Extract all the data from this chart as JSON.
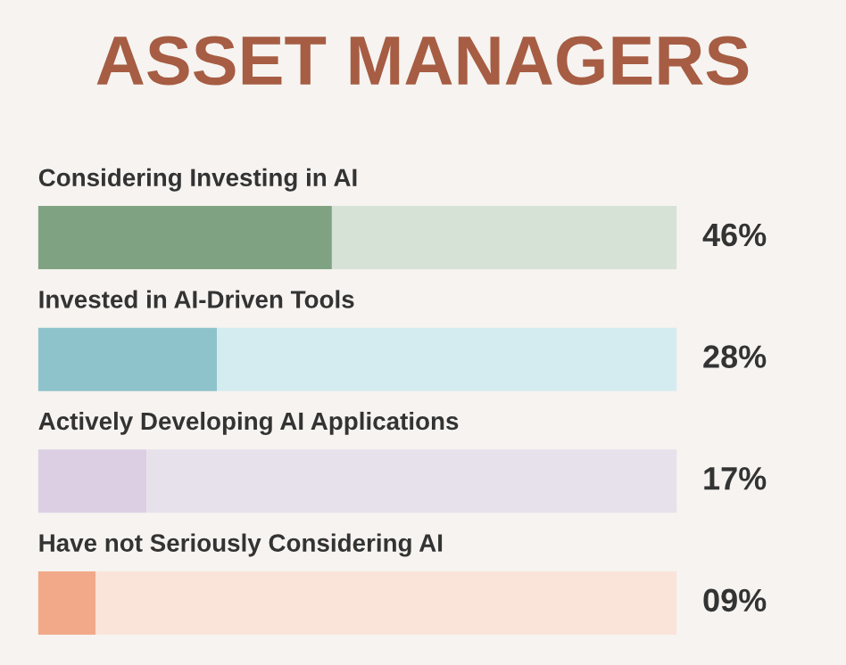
{
  "chart_data": {
    "type": "bar",
    "orientation": "horizontal",
    "stacked": true,
    "title": "ASSET MANAGERS",
    "categories": [
      "Considering Investing in AI",
      "Invested in AI-Driven Tools",
      "Actively Developing AI Applications",
      "Have not Seriously Considering AI"
    ],
    "series": [
      {
        "colors": [
          "#7fa382",
          "#8fc3cc",
          "#dccfe3",
          "#f2a98a"
        ],
        "values": [
          46,
          28,
          17,
          9
        ],
        "value_labels": [
          "46%",
          "28%",
          "17%",
          "09%"
        ]
      },
      {
        "colors": [
          "#d6e2d5",
          "#d4ecf0",
          "#e7e1ec",
          "#fae4da"
        ],
        "values": [
          54,
          72,
          83,
          91
        ]
      }
    ],
    "xlim": [
      0,
      100
    ]
  }
}
